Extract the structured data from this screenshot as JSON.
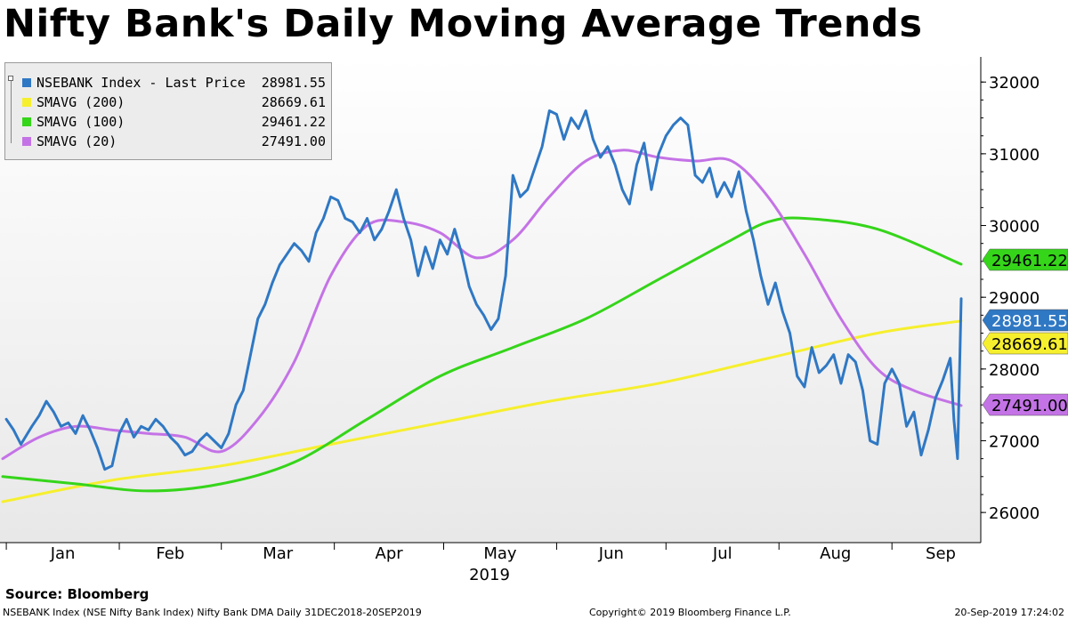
{
  "title": "Nifty Bank's Daily Moving Average Trends",
  "source": "Source: Bloomberg",
  "footer": {
    "left": "NSEBANK Index (NSE Nifty Bank Index) Nifty Bank DMA  Daily 31DEC2018-20SEP2019",
    "middle": "Copyright© 2019 Bloomberg Finance L.P.",
    "right": "20-Sep-2019 17:24:02"
  },
  "chart_data": {
    "type": "line",
    "x_axis": {
      "months": [
        "Jan",
        "Feb",
        "Mar",
        "Apr",
        "May",
        "Jun",
        "Jul",
        "Aug",
        "Sep"
      ],
      "year_label": "2019",
      "range": [
        "2018-12-31",
        "2019-09-20"
      ]
    },
    "y_axis": {
      "ticks": [
        "32000",
        "31000",
        "30000",
        "29000",
        "28000",
        "27000",
        "26000"
      ],
      "range": [
        25580,
        32350
      ],
      "position": "right"
    },
    "legend_position": "top-left",
    "grid": false,
    "series": [
      {
        "name": "NSEBANK Index - Last Price",
        "last_value": "28981.55",
        "color": "#2f78c4",
        "points": [
          [
            "2019-01-01",
            27300
          ],
          [
            "2019-01-03",
            27150
          ],
          [
            "2019-01-05",
            26950
          ],
          [
            "2019-01-08",
            27200
          ],
          [
            "2019-01-10",
            27350
          ],
          [
            "2019-01-12",
            27550
          ],
          [
            "2019-01-14",
            27400
          ],
          [
            "2019-01-16",
            27200
          ],
          [
            "2019-01-18",
            27250
          ],
          [
            "2019-01-20",
            27100
          ],
          [
            "2019-01-22",
            27350
          ],
          [
            "2019-01-24",
            27150
          ],
          [
            "2019-01-26",
            26900
          ],
          [
            "2019-01-28",
            26600
          ],
          [
            "2019-01-30",
            26650
          ],
          [
            "2019-02-01",
            27100
          ],
          [
            "2019-02-03",
            27300
          ],
          [
            "2019-02-05",
            27050
          ],
          [
            "2019-02-07",
            27200
          ],
          [
            "2019-02-09",
            27150
          ],
          [
            "2019-02-11",
            27300
          ],
          [
            "2019-02-13",
            27200
          ],
          [
            "2019-02-15",
            27050
          ],
          [
            "2019-02-17",
            26950
          ],
          [
            "2019-02-19",
            26800
          ],
          [
            "2019-02-21",
            26850
          ],
          [
            "2019-02-23",
            27000
          ],
          [
            "2019-02-25",
            27100
          ],
          [
            "2019-02-27",
            27000
          ],
          [
            "2019-03-01",
            26900
          ],
          [
            "2019-03-03",
            27100
          ],
          [
            "2019-03-05",
            27500
          ],
          [
            "2019-03-07",
            27700
          ],
          [
            "2019-03-09",
            28200
          ],
          [
            "2019-03-11",
            28700
          ],
          [
            "2019-03-13",
            28900
          ],
          [
            "2019-03-15",
            29200
          ],
          [
            "2019-03-17",
            29450
          ],
          [
            "2019-03-19",
            29600
          ],
          [
            "2019-03-21",
            29750
          ],
          [
            "2019-03-23",
            29650
          ],
          [
            "2019-03-25",
            29500
          ],
          [
            "2019-03-27",
            29900
          ],
          [
            "2019-03-29",
            30100
          ],
          [
            "2019-03-31",
            30400
          ],
          [
            "2019-04-02",
            30350
          ],
          [
            "2019-04-04",
            30100
          ],
          [
            "2019-04-06",
            30050
          ],
          [
            "2019-04-08",
            29900
          ],
          [
            "2019-04-10",
            30100
          ],
          [
            "2019-04-12",
            29800
          ],
          [
            "2019-04-14",
            29950
          ],
          [
            "2019-04-16",
            30200
          ],
          [
            "2019-04-18",
            30500
          ],
          [
            "2019-04-20",
            30100
          ],
          [
            "2019-04-22",
            29800
          ],
          [
            "2019-04-24",
            29300
          ],
          [
            "2019-04-26",
            29700
          ],
          [
            "2019-04-28",
            29400
          ],
          [
            "2019-04-30",
            29800
          ],
          [
            "2019-05-02",
            29600
          ],
          [
            "2019-05-04",
            29950
          ],
          [
            "2019-05-06",
            29600
          ],
          [
            "2019-05-08",
            29150
          ],
          [
            "2019-05-10",
            28900
          ],
          [
            "2019-05-12",
            28750
          ],
          [
            "2019-05-14",
            28550
          ],
          [
            "2019-05-16",
            28700
          ],
          [
            "2019-05-18",
            29300
          ],
          [
            "2019-05-20",
            30700
          ],
          [
            "2019-05-22",
            30400
          ],
          [
            "2019-05-24",
            30500
          ],
          [
            "2019-05-26",
            30800
          ],
          [
            "2019-05-28",
            31100
          ],
          [
            "2019-05-30",
            31600
          ],
          [
            "2019-06-01",
            31550
          ],
          [
            "2019-06-03",
            31200
          ],
          [
            "2019-06-05",
            31500
          ],
          [
            "2019-06-07",
            31350
          ],
          [
            "2019-06-09",
            31600
          ],
          [
            "2019-06-11",
            31200
          ],
          [
            "2019-06-13",
            30950
          ],
          [
            "2019-06-15",
            31100
          ],
          [
            "2019-06-17",
            30850
          ],
          [
            "2019-06-19",
            30500
          ],
          [
            "2019-06-21",
            30300
          ],
          [
            "2019-06-23",
            30850
          ],
          [
            "2019-06-25",
            31150
          ],
          [
            "2019-06-27",
            30500
          ],
          [
            "2019-06-29",
            31000
          ],
          [
            "2019-07-01",
            31250
          ],
          [
            "2019-07-03",
            31400
          ],
          [
            "2019-07-05",
            31500
          ],
          [
            "2019-07-07",
            31400
          ],
          [
            "2019-07-09",
            30700
          ],
          [
            "2019-07-11",
            30600
          ],
          [
            "2019-07-13",
            30800
          ],
          [
            "2019-07-15",
            30400
          ],
          [
            "2019-07-17",
            30600
          ],
          [
            "2019-07-19",
            30400
          ],
          [
            "2019-07-21",
            30750
          ],
          [
            "2019-07-23",
            30200
          ],
          [
            "2019-07-25",
            29800
          ],
          [
            "2019-07-27",
            29300
          ],
          [
            "2019-07-29",
            28900
          ],
          [
            "2019-07-31",
            29200
          ],
          [
            "2019-08-02",
            28800
          ],
          [
            "2019-08-04",
            28500
          ],
          [
            "2019-08-06",
            27900
          ],
          [
            "2019-08-08",
            27750
          ],
          [
            "2019-08-10",
            28300
          ],
          [
            "2019-08-12",
            27950
          ],
          [
            "2019-08-14",
            28050
          ],
          [
            "2019-08-16",
            28200
          ],
          [
            "2019-08-18",
            27800
          ],
          [
            "2019-08-20",
            28200
          ],
          [
            "2019-08-22",
            28100
          ],
          [
            "2019-08-24",
            27700
          ],
          [
            "2019-08-26",
            27000
          ],
          [
            "2019-08-28",
            26950
          ],
          [
            "2019-08-30",
            27800
          ],
          [
            "2019-09-01",
            28000
          ],
          [
            "2019-09-03",
            27800
          ],
          [
            "2019-09-05",
            27200
          ],
          [
            "2019-09-07",
            27400
          ],
          [
            "2019-09-09",
            26800
          ],
          [
            "2019-09-11",
            27150
          ],
          [
            "2019-09-13",
            27600
          ],
          [
            "2019-09-15",
            27850
          ],
          [
            "2019-09-17",
            28150
          ],
          [
            "2019-09-18",
            27300
          ],
          [
            "2019-09-19",
            26750
          ],
          [
            "2019-09-20",
            28981.55
          ]
        ]
      },
      {
        "name": "SMAVG (200)",
        "last_value": "28669.61",
        "color": "#f6ef2e",
        "points": [
          [
            "2018-12-31",
            26150
          ],
          [
            "2019-01-30",
            26450
          ],
          [
            "2019-03-01",
            26650
          ],
          [
            "2019-03-31",
            26950
          ],
          [
            "2019-04-30",
            27250
          ],
          [
            "2019-05-30",
            27550
          ],
          [
            "2019-06-29",
            27800
          ],
          [
            "2019-07-29",
            28150
          ],
          [
            "2019-08-28",
            28500
          ],
          [
            "2019-09-20",
            28669.61
          ]
        ]
      },
      {
        "name": "SMAVG (100)",
        "last_value": "29461.22",
        "color": "#35d51a",
        "points": [
          [
            "2018-12-31",
            26500
          ],
          [
            "2019-01-20",
            26400
          ],
          [
            "2019-02-09",
            26300
          ],
          [
            "2019-03-01",
            26400
          ],
          [
            "2019-03-21",
            26700
          ],
          [
            "2019-04-10",
            27300
          ],
          [
            "2019-04-30",
            27900
          ],
          [
            "2019-05-20",
            28300
          ],
          [
            "2019-06-09",
            28700
          ],
          [
            "2019-06-29",
            29250
          ],
          [
            "2019-07-19",
            29800
          ],
          [
            "2019-07-29",
            30050
          ],
          [
            "2019-08-08",
            30100
          ],
          [
            "2019-08-28",
            29950
          ],
          [
            "2019-09-20",
            29461.22
          ]
        ]
      },
      {
        "name": "SMAVG (20)",
        "last_value": "27491.00",
        "color": "#c473e6",
        "points": [
          [
            "2018-12-31",
            26750
          ],
          [
            "2019-01-10",
            27050
          ],
          [
            "2019-01-20",
            27200
          ],
          [
            "2019-01-30",
            27150
          ],
          [
            "2019-02-09",
            27100
          ],
          [
            "2019-02-19",
            27050
          ],
          [
            "2019-03-01",
            26850
          ],
          [
            "2019-03-11",
            27300
          ],
          [
            "2019-03-21",
            28100
          ],
          [
            "2019-03-31",
            29300
          ],
          [
            "2019-04-10",
            30000
          ],
          [
            "2019-04-20",
            30050
          ],
          [
            "2019-04-30",
            29900
          ],
          [
            "2019-05-10",
            29550
          ],
          [
            "2019-05-20",
            29800
          ],
          [
            "2019-05-30",
            30400
          ],
          [
            "2019-06-09",
            30900
          ],
          [
            "2019-06-19",
            31050
          ],
          [
            "2019-06-29",
            30950
          ],
          [
            "2019-07-09",
            30900
          ],
          [
            "2019-07-19",
            30900
          ],
          [
            "2019-07-29",
            30400
          ],
          [
            "2019-08-08",
            29600
          ],
          [
            "2019-08-18",
            28700
          ],
          [
            "2019-08-28",
            28000
          ],
          [
            "2019-09-07",
            27700
          ],
          [
            "2019-09-20",
            27491.0
          ]
        ]
      }
    ]
  }
}
